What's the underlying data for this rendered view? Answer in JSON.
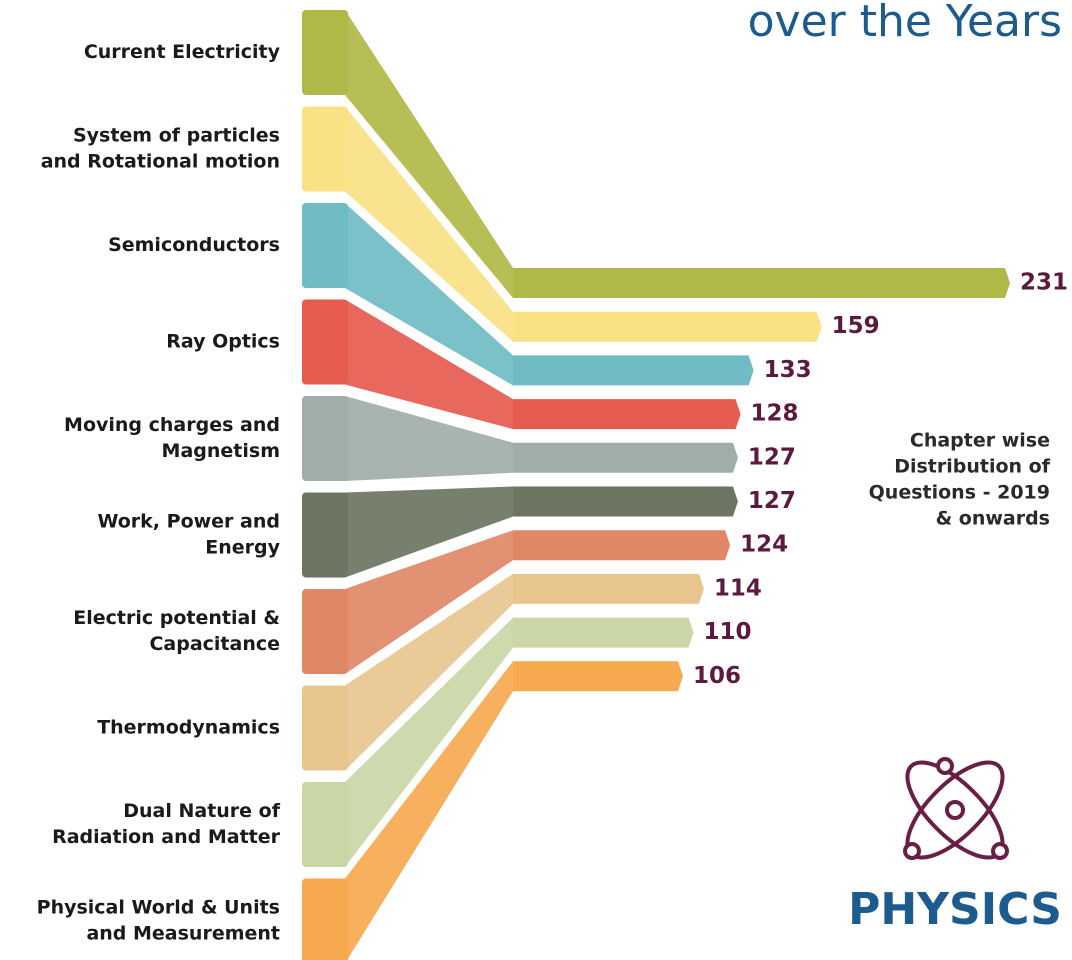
{
  "chart_data": {
    "type": "ribbon-bar",
    "title": "over the Years",
    "categories": [
      [
        "Current Electricity"
      ],
      [
        "System of particles",
        "and Rotational motion"
      ],
      [
        "Semiconductors"
      ],
      [
        "Ray Optics"
      ],
      [
        "Moving charges and",
        "Magnetism"
      ],
      [
        "Work, Power and",
        "Energy"
      ],
      [
        "Electric potential  &",
        "Capacitance"
      ],
      [
        "Thermodynamics"
      ],
      [
        "Dual Nature of",
        "Radiation and Matter"
      ],
      [
        "Physical World & Units",
        "and Measurement"
      ]
    ],
    "values": [
      231,
      159,
      133,
      128,
      127,
      127,
      124,
      114,
      110,
      106
    ],
    "colors": [
      "#b0b847",
      "#f9e184",
      "#6fbcc4",
      "#e65b4f",
      "#a0aeab",
      "#6b7560",
      "#e08866",
      "#e8c58f",
      "#cad6a6",
      "#f6a94f"
    ],
    "annotation": [
      "Chapter wise",
      "Distribution of",
      "Questions - 2019",
      "& onwards"
    ],
    "subject": "PHYSICS"
  }
}
